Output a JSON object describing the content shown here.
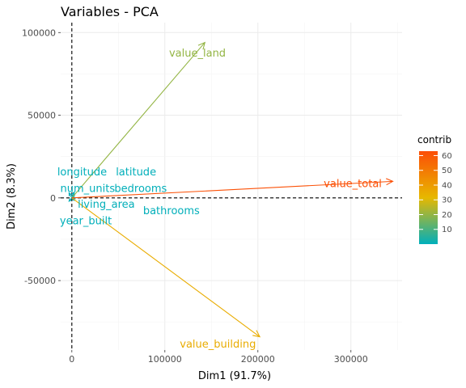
{
  "chart_data": {
    "type": "scatter",
    "subtype": "pca-variable-arrows",
    "title": "Variables - PCA",
    "xlabel": "Dim1 (91.7%)",
    "ylabel": "Dim2 (8.3%)",
    "xlim": [
      -12000,
      355000
    ],
    "ylim": [
      -92000,
      106000
    ],
    "xticks": [
      0,
      100000,
      200000,
      300000
    ],
    "yticks": [
      -50000,
      0,
      50000,
      100000
    ],
    "xtick_labels": [
      "0",
      "100000",
      "200000",
      "300000"
    ],
    "ytick_labels": [
      "-50000",
      "0",
      "50000",
      "100000"
    ],
    "grid": true,
    "reference_lines": {
      "x": 0,
      "y": 0
    },
    "legend": {
      "title": "contrib",
      "position": "right",
      "ticks": [
        10,
        20,
        30,
        40,
        50,
        60
      ],
      "range": [
        0,
        63
      ],
      "colors": [
        "#00AFBB",
        "#E7B800",
        "#FC4E07"
      ]
    },
    "variables": [
      {
        "name": "value_total",
        "x": 345000,
        "y": 10000,
        "contrib": 62,
        "label_x": 302000,
        "label_y": 9000
      },
      {
        "name": "value_land",
        "x": 143000,
        "y": 94000,
        "contrib": 20,
        "label_x": 135000,
        "label_y": 88000
      },
      {
        "name": "value_building",
        "x": 202000,
        "y": -84000,
        "contrib": 35,
        "label_x": 157000,
        "label_y": -88000
      },
      {
        "name": "longitude",
        "x": -3000,
        "y": 3000,
        "contrib": 0.2,
        "label_x": 11000,
        "label_y": 16000
      },
      {
        "name": "latitude",
        "x": 2500,
        "y": 3500,
        "contrib": 0.2,
        "label_x": 69000,
        "label_y": 16000
      },
      {
        "name": "num_units",
        "x": 1500,
        "y": 1500,
        "contrib": 0.1,
        "label_x": 17000,
        "label_y": 6000
      },
      {
        "name": "bedrooms",
        "x": 3000,
        "y": 2000,
        "contrib": 0.3,
        "label_x": 74000,
        "label_y": 6000
      },
      {
        "name": "living_area",
        "x": 3500,
        "y": -500,
        "contrib": 0.4,
        "label_x": 37000,
        "label_y": -3500
      },
      {
        "name": "bathrooms",
        "x": 2500,
        "y": -1500,
        "contrib": 0.2,
        "label_x": 107000,
        "label_y": -7500
      },
      {
        "name": "year_built",
        "x": -3000,
        "y": -2000,
        "contrib": 0.1,
        "label_x": 15000,
        "label_y": -13500
      }
    ]
  }
}
